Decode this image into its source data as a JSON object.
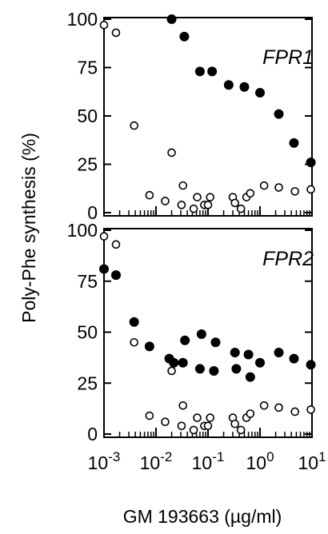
{
  "chart_data": {
    "type": "scatter",
    "ylabel": "Poly-Phe synthesis (%)",
    "xlabel": "GM 193663  (µg/ml)",
    "xscale": "log",
    "xlim": [
      0.001,
      10
    ],
    "x_tick_labels": [
      "10",
      "10",
      "10",
      "10",
      "10"
    ],
    "x_tick_exponents": [
      "-3",
      "-2",
      "-1",
      "0",
      "1"
    ],
    "panels": [
      {
        "label": "FPR1",
        "ylim": [
          0,
          100
        ],
        "y_ticks": [
          "0",
          "25",
          "50",
          "75",
          "100"
        ],
        "series": [
          {
            "marker": "filled-circle",
            "x": [
              0.02,
              0.035,
              0.07,
              0.12,
              0.25,
              0.5,
              1.0,
              2.3,
              4.5,
              9.5
            ],
            "y": [
              100,
              91,
              73,
              73,
              66,
              65,
              62,
              51,
              36,
              26
            ]
          },
          {
            "marker": "open-circle",
            "x": [
              0.001,
              0.0017,
              0.0038,
              0.0075,
              0.015,
              0.02,
              0.031,
              0.033,
              0.053,
              0.062,
              0.085,
              0.1,
              0.11,
              0.3,
              0.33,
              0.43,
              0.55,
              0.65,
              1.2,
              2.3,
              4.7,
              9.5
            ],
            "y": [
              97,
              93,
              45,
              9,
              6,
              31,
              4,
              14,
              2,
              8,
              4,
              4,
              8,
              8,
              5,
              2,
              8,
              10,
              14,
              13,
              11,
              12
            ]
          }
        ]
      },
      {
        "label": "FPR2",
        "ylim": [
          0,
          100
        ],
        "y_ticks": [
          "0",
          "25",
          "50",
          "75",
          "100"
        ],
        "series": [
          {
            "marker": "filled-circle",
            "x": [
              0.001,
              0.0017,
              0.0038,
              0.0075,
              0.018,
              0.022,
              0.033,
              0.036,
              0.07,
              0.075,
              0.13,
              0.14,
              0.33,
              0.35,
              0.6,
              0.65,
              1.0,
              2.3,
              4.5,
              9.5
            ],
            "y": [
              81,
              78,
              55,
              43,
              37,
              35,
              35,
              46,
              32,
              49,
              31,
              45,
              40,
              32,
              39,
              28,
              35,
              40,
              37,
              34
            ]
          },
          {
            "marker": "open-circle",
            "x": [
              0.001,
              0.0017,
              0.0038,
              0.0075,
              0.015,
              0.02,
              0.031,
              0.033,
              0.053,
              0.062,
              0.085,
              0.1,
              0.11,
              0.3,
              0.33,
              0.43,
              0.55,
              0.65,
              1.2,
              2.3,
              4.7,
              9.5
            ],
            "y": [
              97,
              93,
              45,
              9,
              6,
              31,
              4,
              14,
              2,
              8,
              4,
              4,
              8,
              8,
              5,
              2,
              8,
              10,
              14,
              13,
              11,
              12
            ]
          }
        ]
      }
    ]
  }
}
